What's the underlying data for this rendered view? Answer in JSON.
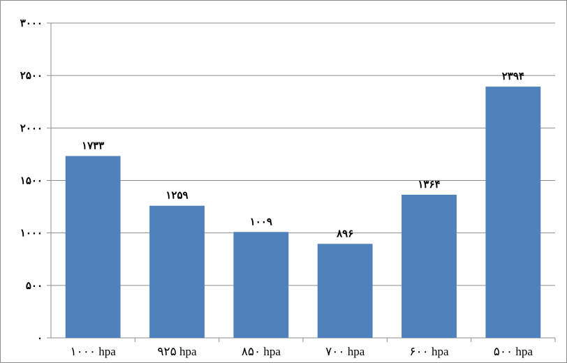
{
  "chart_data": {
    "type": "bar",
    "categories": [
      "۱۰۰۰ hpa",
      "۹۲۵ hpa",
      "۸۵۰ hpa",
      "۷۰۰ hpa",
      "۶۰۰ hpa",
      "۵۰۰ hpa"
    ],
    "values": [
      1733,
      1259,
      1009,
      896,
      1364,
      2394
    ],
    "data_labels": [
      "۱۷۳۳",
      "۱۲۵۹",
      "۱۰۰۹",
      "۸۹۶",
      "۱۳۶۴",
      "۲۳۹۴"
    ],
    "yticks": [
      0,
      500,
      1000,
      1500,
      2000,
      2500,
      3000
    ],
    "ytick_labels": [
      "۰",
      "۵۰۰",
      "۱۰۰۰",
      "۱۵۰۰",
      "۲۰۰۰",
      "۲۵۰۰",
      "۳۰۰۰"
    ],
    "ylim": [
      0,
      3000
    ],
    "title": "",
    "xlabel": "",
    "ylabel": "",
    "grid": true,
    "bar_color": "#4f81bd",
    "grid_color": "#8c8c8c"
  }
}
